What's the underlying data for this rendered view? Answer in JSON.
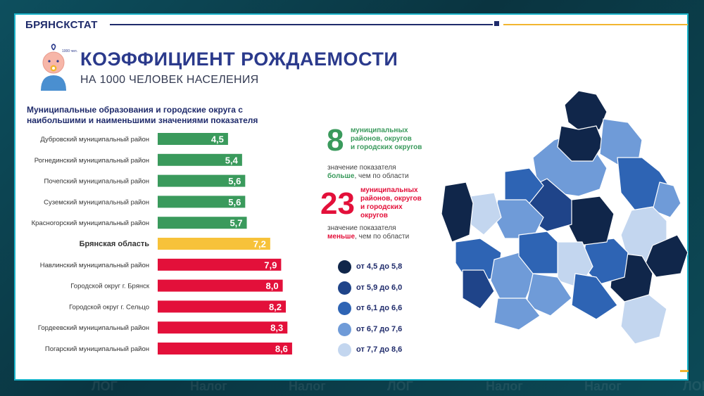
{
  "header": {
    "org": "БРЯНСКСТАТ"
  },
  "title": "КОЭФФИЦИЕНТ РОЖДАЕМОСТИ",
  "subtitle": "НА 1000 ЧЕЛОВЕК НАСЕЛЕНИЯ",
  "icon": {
    "name": "baby-icon",
    "caption": "1000 чел."
  },
  "chart_title": "Муниципальные образования и городские округа с наибольшими и наименьшими значениями показателя",
  "chart_data": {
    "type": "bar",
    "orientation": "horizontal",
    "categories": [
      "Дубровский муниципальный район",
      "Рогнединский муниципальный район",
      "Почепский муниципальный район",
      "Суземский муниципальный район",
      "Красногорский муниципальный район",
      "Брянская область",
      "Навлинский муниципальный район",
      "Городской округ г. Брянск",
      "Городской округ г. Сельцо",
      "Гордеевский муниципальный район",
      "Погарский муниципальный район"
    ],
    "values": [
      4.5,
      5.4,
      5.6,
      5.6,
      5.7,
      7.2,
      7.9,
      8.0,
      8.2,
      8.3,
      8.6
    ],
    "value_labels": [
      "4,5",
      "5,4",
      "5,6",
      "5,6",
      "5,7",
      "7,2",
      "7,9",
      "8,0",
      "8,2",
      "8,3",
      "8,6"
    ],
    "bar_colors": [
      "#3a9a5c",
      "#3a9a5c",
      "#3a9a5c",
      "#3a9a5c",
      "#3a9a5c",
      "#f7c23a",
      "#e3103a",
      "#e3103a",
      "#e3103a",
      "#e3103a",
      "#e3103a"
    ],
    "highlight_index": 5
  },
  "stats": {
    "more": {
      "number": "8",
      "text": [
        "муниципальных",
        "районов, округов",
        "и городских округов"
      ],
      "note_prefix": "значение показателя",
      "note_bold": "больше",
      "note_suffix": ", чем по области",
      "color": "#3a9a5c"
    },
    "less": {
      "number": "23",
      "text": [
        "муниципальных",
        "районов, округов",
        "и городских",
        "округов"
      ],
      "note_prefix": "значение показателя",
      "note_bold": "меньше",
      "note_suffix": ", чем по области",
      "color": "#e3103a"
    }
  },
  "legend": [
    {
      "label": "от 4,5 до 5,8",
      "color": "#10264a"
    },
    {
      "label": "от 5,9 до 6,0",
      "color": "#1f4489"
    },
    {
      "label": "от 6,1 до 6,6",
      "color": "#2e64b4"
    },
    {
      "label": "от 6,7 до 7,6",
      "color": "#6f9bd8"
    },
    {
      "label": "от 7,7 до 8,6",
      "color": "#c3d6ef"
    }
  ],
  "background_watermark": [
    "ЛОГ",
    "Налог",
    "Налог",
    "ЛОГ",
    "Налог",
    "Налог",
    "ЛОГ"
  ]
}
